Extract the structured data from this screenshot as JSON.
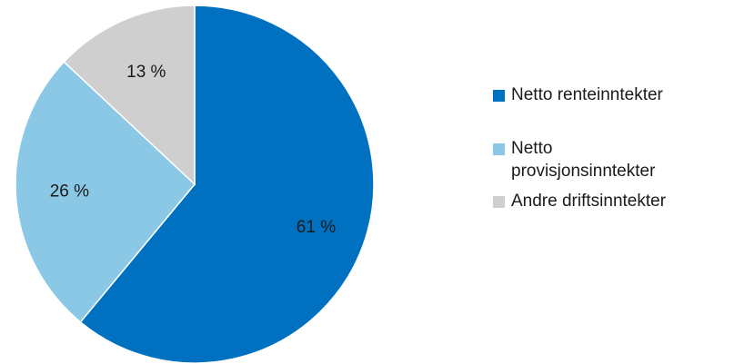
{
  "chart_data": {
    "type": "pie",
    "title": "",
    "slices": [
      {
        "label": "Netto renteinntekter",
        "value": 61,
        "display": "61 %",
        "color": "#0070c0"
      },
      {
        "label": "Netto provisjonsinntekter",
        "value": 26,
        "display": "26 %",
        "color": "#8ac8e6"
      },
      {
        "label": "Andre driftsinntekter",
        "value": 13,
        "display": "13 %",
        "color": "#cfcfcf"
      }
    ],
    "legend_position": "right"
  },
  "legend": {
    "items": [
      {
        "label_line1": "Netto renteinntekter",
        "label_line2": ""
      },
      {
        "label_line1": "Netto",
        "label_line2": "provisjonsinntekter"
      },
      {
        "label_line1": "Andre driftsinntekter",
        "label_line2": ""
      }
    ]
  }
}
